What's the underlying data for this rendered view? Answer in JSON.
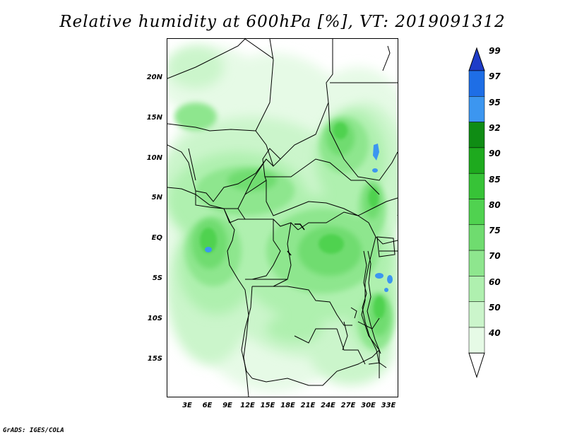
{
  "title": "Relative humidity at 600hPa [%], VT: 2019091312",
  "map": {
    "lat_labels": [
      "20N",
      "15N",
      "10N",
      "5N",
      "EQ",
      "5S",
      "10S",
      "15S"
    ],
    "lon_labels": [
      "3E",
      "6E",
      "9E",
      "12E",
      "15E",
      "18E",
      "21E",
      "24E",
      "27E",
      "30E",
      "33E"
    ],
    "lon_range": [
      0,
      35
    ],
    "lat_range": [
      -20,
      25
    ]
  },
  "colorbar": {
    "labels": [
      "99",
      "97",
      "95",
      "92",
      "90",
      "85",
      "80",
      "75",
      "70",
      "60",
      "50",
      "40"
    ],
    "colors": [
      "#1e3cc8",
      "#1e6ee6",
      "#3c96f0",
      "#0f8c14",
      "#1eaa1e",
      "#37c337",
      "#50d250",
      "#6fdc6f",
      "#8ee68e",
      "#aff0af",
      "#cbf5cb",
      "#e6fae6"
    ]
  },
  "footer": {
    "credit": "GrADS: IGES/COLA"
  }
}
